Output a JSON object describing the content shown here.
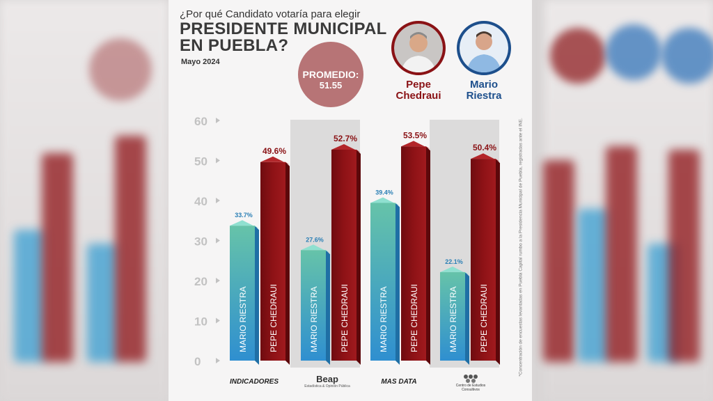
{
  "header": {
    "question": "¿Por qué Candidato votaría para elegir",
    "title_line1": "PRESIDENTE MUNICIPAL",
    "title_line2": "EN PUEBLA?",
    "date": "Mayo 2024"
  },
  "average": {
    "label": "PROMEDIO:",
    "value": "51.55"
  },
  "candidates": [
    {
      "first": "Pepe",
      "last": "Chedraui",
      "color": "#8a1215"
    },
    {
      "first": "Mario",
      "last": "Riestra",
      "color": "#1d4f8c"
    }
  ],
  "colors": {
    "chedraui_bar": "#8e1216",
    "riestra_bar_top": "#66c3a9",
    "riestra_bar_bottom": "#2f8fd0",
    "average_circle": "#b77476"
  },
  "pollsters": [
    {
      "name": "INDICADORES",
      "sub": ""
    },
    {
      "name": "Beap",
      "sub": "Estadística & Opinión Pública"
    },
    {
      "name": "MAS DATA",
      "sub": ""
    },
    {
      "name": "",
      "sub": "Centro de Estudios Consultivos"
    }
  ],
  "side_note": "*Concentración de encuestas levantadas en Puebla Capital rumbo a la Presidencia Municipal de Puebla, registradas ante el INE.",
  "chart_data": {
    "type": "bar",
    "categories": [
      "INDICADORES",
      "Beap",
      "MAS DATA",
      "Centro de Estudios Consultivos"
    ],
    "series": [
      {
        "name": "MARIO RIESTRA",
        "values": [
          33.7,
          27.6,
          39.4,
          22.1
        ],
        "labels": [
          "33.7%",
          "27.6%",
          "39.4%",
          "22.1%"
        ]
      },
      {
        "name": "PEPE CHEDRAUI",
        "values": [
          49.6,
          52.7,
          53.5,
          50.4
        ],
        "labels": [
          "49.6%",
          "52.7%",
          "53.5%",
          "50.4%"
        ]
      }
    ],
    "ylim": [
      0,
      60
    ],
    "yticks": [
      "0",
      "10",
      "20",
      "30",
      "40",
      "50",
      "60"
    ],
    "grid": false,
    "legend": "none"
  }
}
